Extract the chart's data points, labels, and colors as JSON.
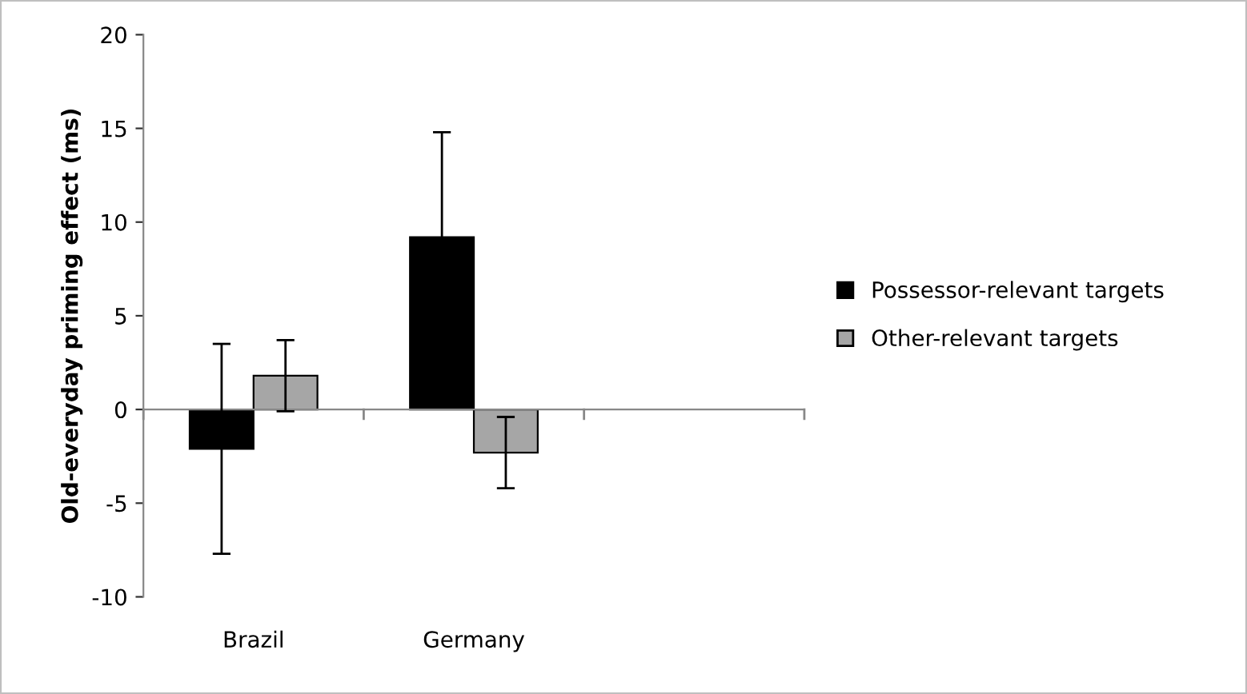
{
  "chart_data": {
    "type": "bar",
    "ylabel": "Old-everyday priming effect (ms)",
    "categories": [
      "Brazil",
      "Germany",
      null
    ],
    "series": [
      {
        "name": "Possessor-relevant targets",
        "color": "#000000",
        "values": [
          -2.1,
          9.2,
          null
        ],
        "errors": [
          5.6,
          5.6,
          null
        ]
      },
      {
        "name": "Other-relevant targets",
        "color": "#a6a6a6",
        "values": [
          1.8,
          -2.3,
          null
        ],
        "errors": [
          1.9,
          1.9,
          null
        ]
      }
    ],
    "ylim": [
      -10,
      20
    ],
    "yticks": [
      -10,
      -5,
      0,
      5,
      10,
      15,
      20
    ],
    "legend": "right"
  }
}
